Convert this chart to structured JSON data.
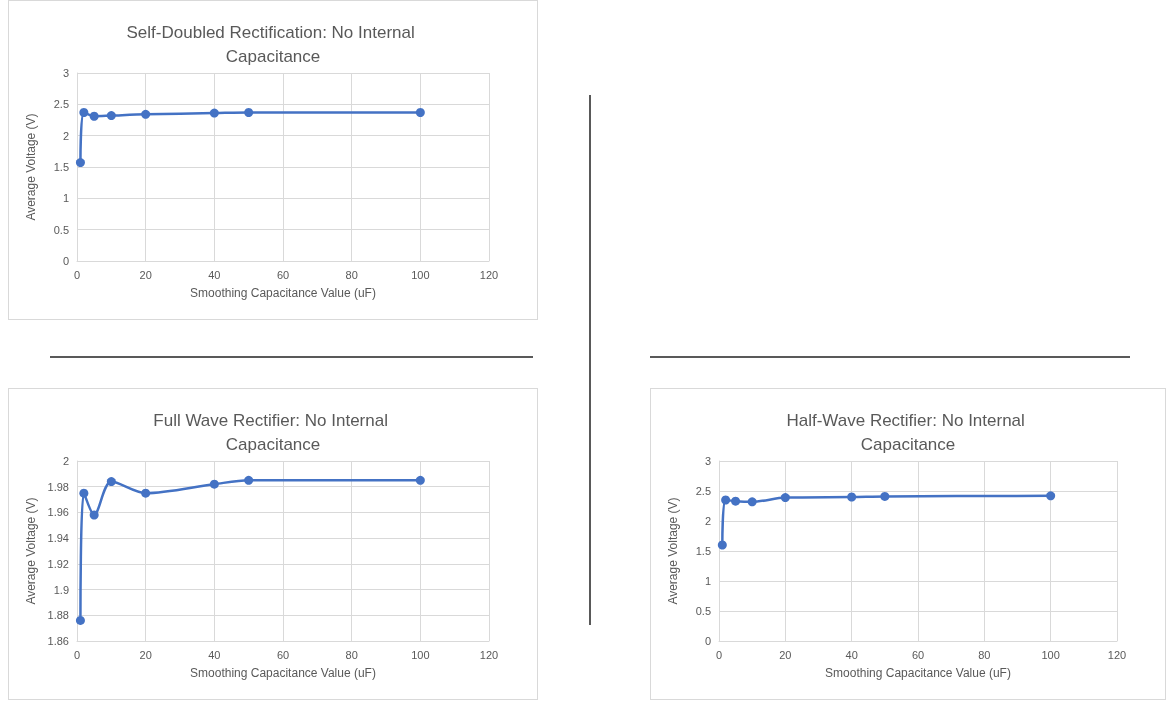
{
  "chart_data": [
    {
      "type": "line",
      "title": "Self-Doubled Rectification: No Internal Capacitance",
      "xlabel": "Smoothing Capacitance Value (uF)",
      "ylabel": "Average Voltage (V)",
      "x": [
        1,
        2,
        5,
        10,
        20,
        40,
        50,
        100
      ],
      "series": [
        {
          "color": "#4472c4",
          "values": [
            1.57,
            2.37,
            2.31,
            2.32,
            2.34,
            2.36,
            2.37,
            2.37
          ]
        }
      ],
      "xlim": [
        0,
        120
      ],
      "xticks": [
        0,
        20,
        40,
        60,
        80,
        100,
        120
      ],
      "ylim": [
        0,
        3
      ],
      "yticks": [
        0,
        0.5,
        1,
        1.5,
        2,
        2.5,
        3
      ],
      "grid": true,
      "marker": "circle",
      "line_style": "solid"
    },
    {
      "type": "line",
      "title": "Full Wave Rectifier: No Internal Capacitance",
      "xlabel": "Smoothing Capacitance Value (uF)",
      "ylabel": "Average Voltage (V)",
      "x": [
        1,
        2,
        5,
        10,
        20,
        40,
        50,
        100
      ],
      "series": [
        {
          "color": "#4472c4",
          "values": [
            1.876,
            1.975,
            1.958,
            1.984,
            1.975,
            1.982,
            1.985,
            1.985
          ]
        }
      ],
      "xlim": [
        0,
        120
      ],
      "xticks": [
        0,
        20,
        40,
        60,
        80,
        100,
        120
      ],
      "ylim": [
        1.86,
        2
      ],
      "yticks": [
        1.86,
        1.88,
        1.9,
        1.92,
        1.94,
        1.96,
        1.98,
        2
      ],
      "grid": true,
      "marker": "circle",
      "line_style": "solid"
    },
    {
      "type": "line",
      "title": "Half-Wave Rectifier: No Internal Capacitance",
      "xlabel": "Smoothing Capacitance Value (uF)",
      "ylabel": "Average Voltage (V)",
      "x": [
        1,
        2,
        5,
        10,
        20,
        40,
        50,
        100
      ],
      "series": [
        {
          "color": "#4472c4",
          "values": [
            1.6,
            2.35,
            2.33,
            2.32,
            2.39,
            2.4,
            2.41,
            2.42
          ]
        }
      ],
      "xlim": [
        0,
        120
      ],
      "xticks": [
        0,
        20,
        40,
        60,
        80,
        100,
        120
      ],
      "ylim": [
        0,
        3
      ],
      "yticks": [
        0,
        0.5,
        1,
        1.5,
        2,
        2.5,
        3
      ],
      "grid": true,
      "marker": "circle",
      "line_style": "solid"
    }
  ]
}
